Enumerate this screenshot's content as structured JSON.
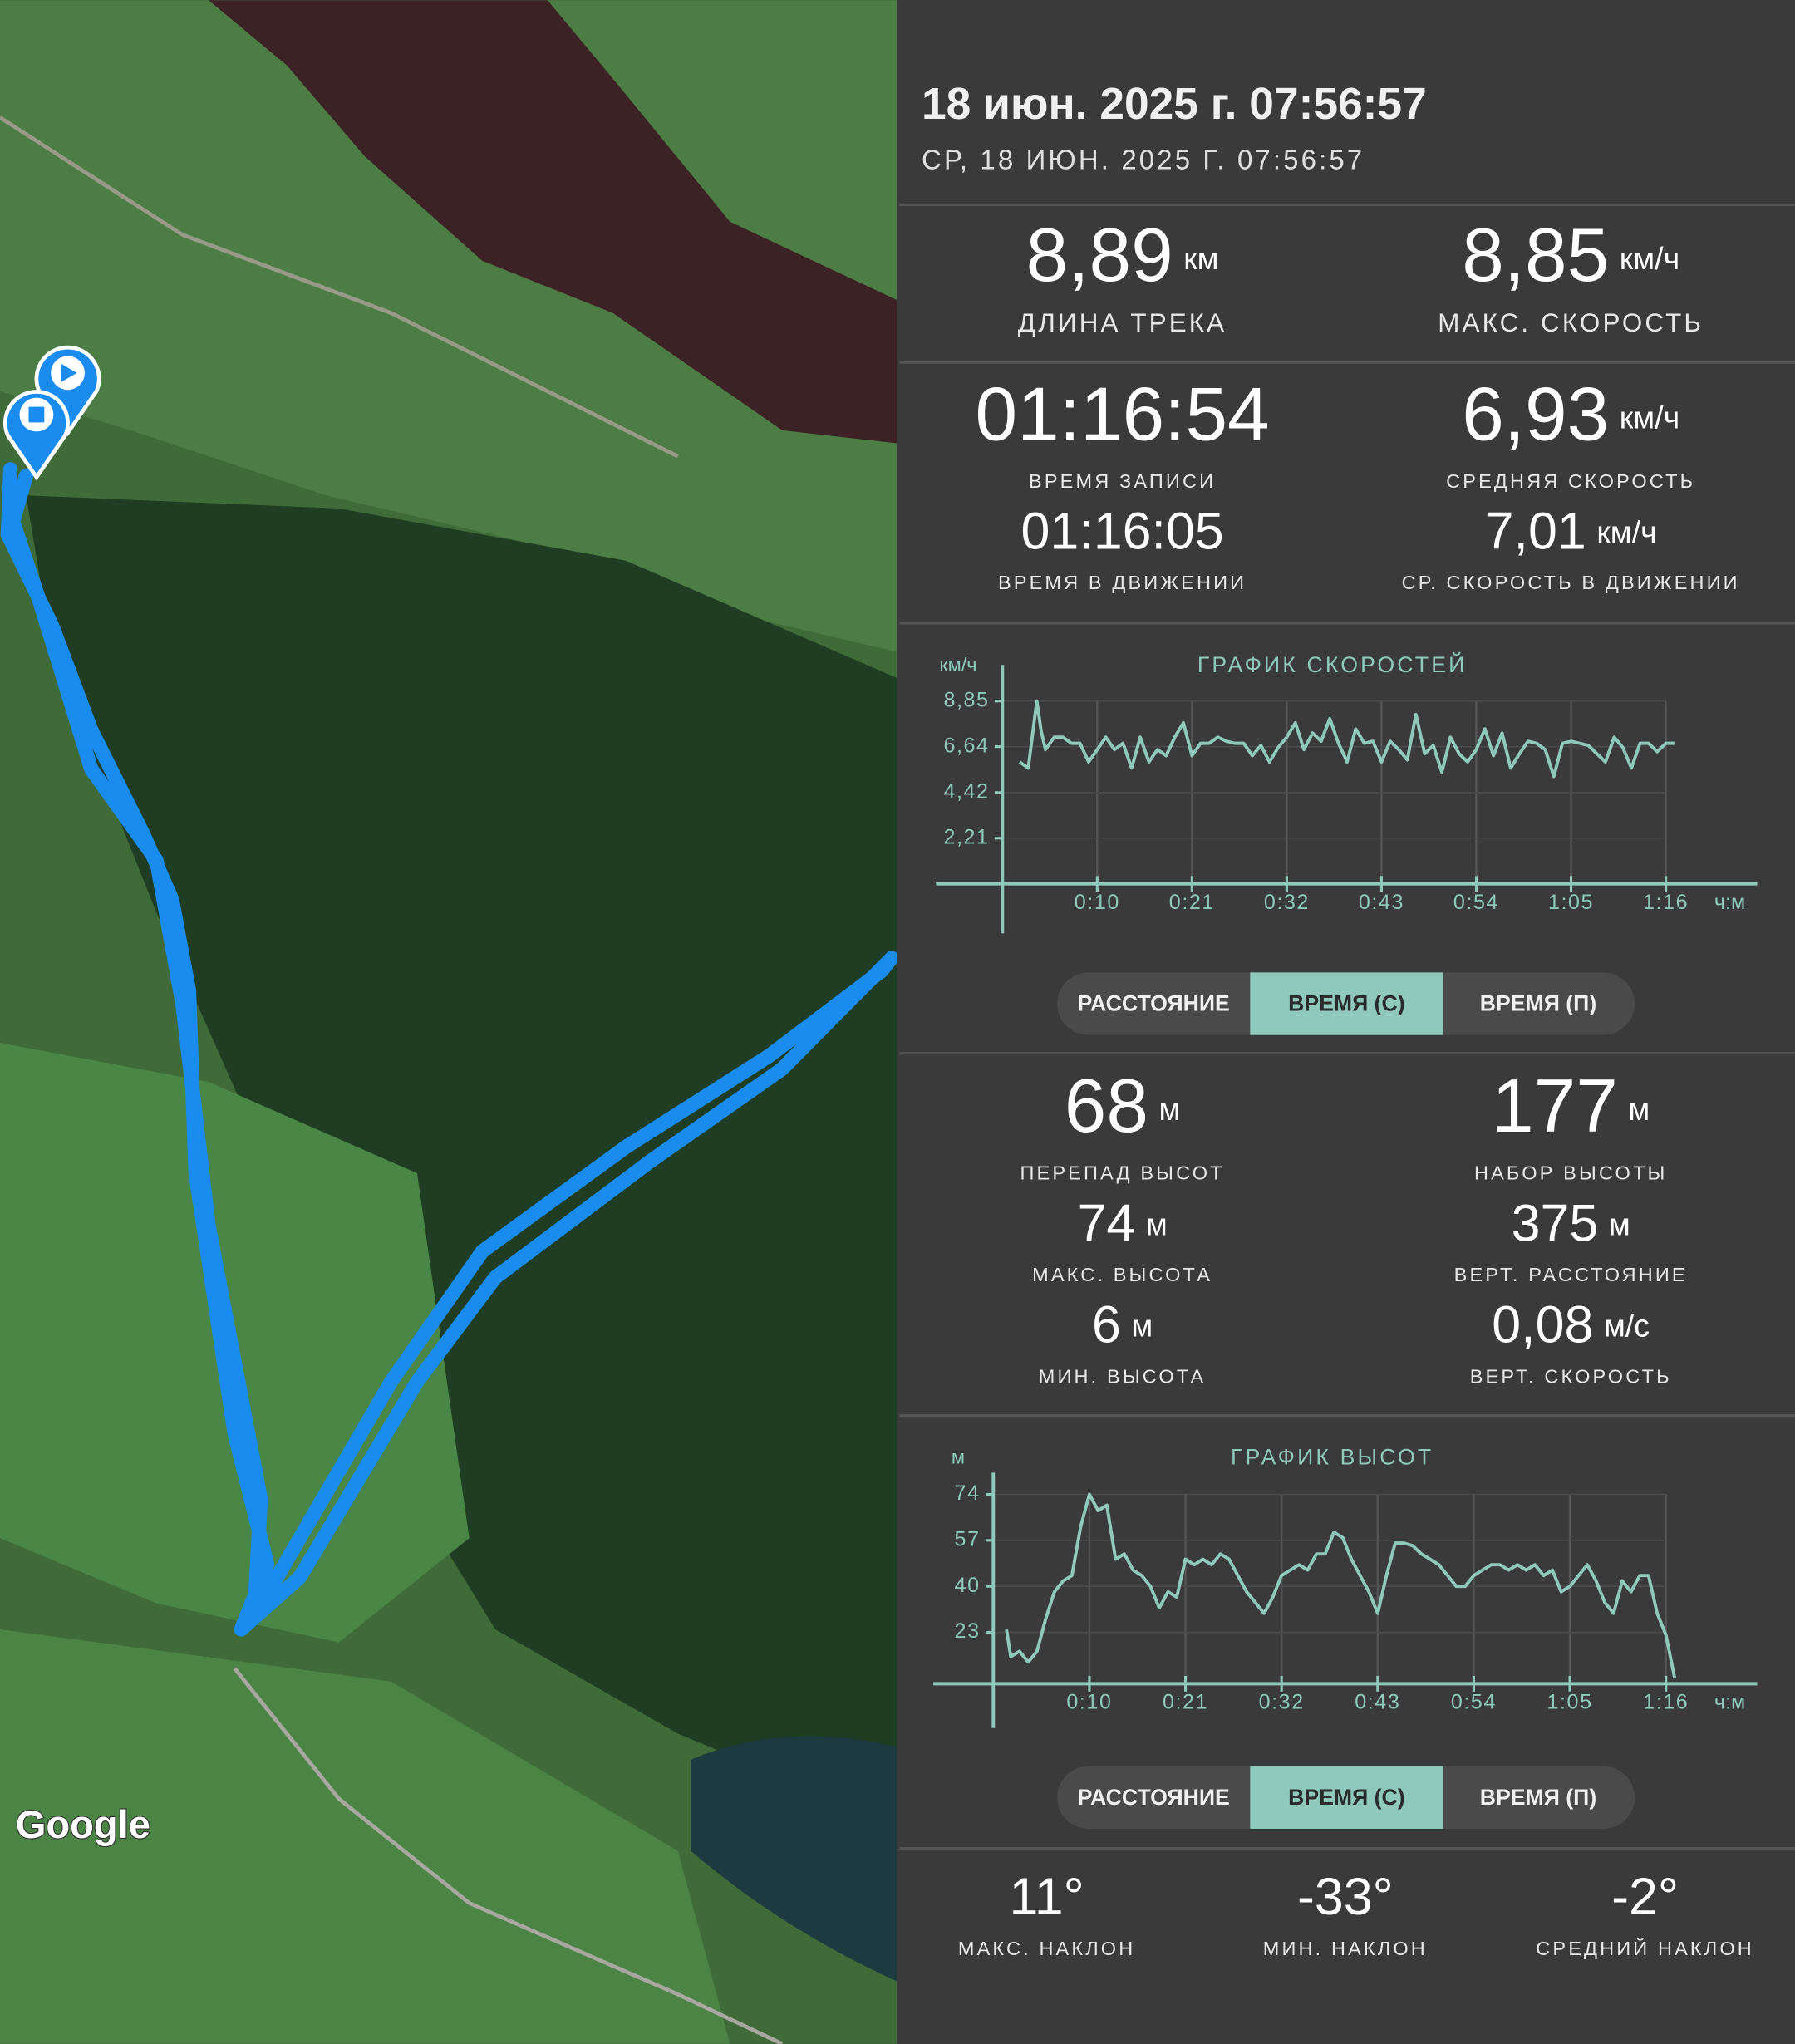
{
  "header": {
    "title": "18 июн. 2025 г. 07:56:57",
    "subtitle": "СР, 18 ИЮН. 2025 Г. 07:56:57"
  },
  "map": {
    "attribution": "Google"
  },
  "summary": [
    {
      "value": "8,89",
      "unit": "км",
      "label": "ДЛИНА ТРЕКА"
    },
    {
      "value": "8,85",
      "unit": "км/ч",
      "label": "МАКС. СКОРОСТЬ"
    },
    {
      "value": "01:16:54",
      "label": "ВРЕМЯ ЗАПИСИ"
    },
    {
      "value": "6,93",
      "unit": "км/ч",
      "label": "СРЕДНЯЯ СКОРОСТЬ"
    },
    {
      "value": "01:16:05",
      "label": "ВРЕМЯ В ДВИЖЕНИИ"
    },
    {
      "value": "7,01",
      "unit": "км/ч",
      "label": "СР. СКОРОСТЬ В ДВИЖЕНИИ"
    }
  ],
  "speed_modes": [
    "РАССТОЯНИЕ",
    "ВРЕМЯ (С)",
    "ВРЕМЯ (П)"
  ],
  "altitude": [
    {
      "value": "68",
      "unit": "м",
      "label": "ПЕРЕПАД ВЫСОТ"
    },
    {
      "value": "177",
      "unit": "м",
      "label": "НАБОР ВЫСОТЫ"
    },
    {
      "value": "74",
      "unit": "м",
      "label": "МАКС. ВЫСОТА"
    },
    {
      "value": "375",
      "unit": "м",
      "label": "ВЕРТ. РАССТОЯНИЕ"
    },
    {
      "value": "6",
      "unit": "м",
      "label": "МИН. ВЫСОТА"
    },
    {
      "value": "0,08",
      "unit": "м/с",
      "label": "ВЕРТ. СКОРОСТЬ"
    }
  ],
  "altitude_modes": [
    "РАССТОЯНИЕ",
    "ВРЕМЯ (С)",
    "ВРЕМЯ (П)"
  ],
  "slope": [
    {
      "value": "11°",
      "label": "МАКС. НАКЛОН"
    },
    {
      "value": "-33°",
      "label": "МИН. НАКЛОН"
    },
    {
      "value": "-2°",
      "label": "СРЕДНИЙ НАКЛОН"
    }
  ],
  "chart_data": [
    {
      "type": "line",
      "title": "ГРАФИК СКОРОСТЕЙ",
      "y_label": "км/ч",
      "x_label": "ч:м",
      "color": "#8ec9bb",
      "grid": true,
      "x": [
        1,
        2,
        3,
        3.5,
        4,
        5,
        6,
        7,
        8,
        9,
        10,
        11,
        12,
        13,
        14,
        15,
        16,
        17,
        18,
        19,
        20,
        21,
        22,
        23,
        24,
        25,
        26,
        27,
        28,
        29,
        30,
        31,
        32,
        33,
        34,
        35,
        36,
        37,
        38,
        39,
        40,
        41,
        42,
        43,
        44,
        45,
        46,
        47,
        48,
        49,
        50,
        51,
        52,
        53,
        54,
        55,
        56,
        57,
        58,
        59,
        60,
        61,
        62,
        63,
        64,
        65,
        66,
        67,
        68,
        69,
        70,
        71,
        72,
        73,
        74,
        75,
        76,
        77
      ],
      "values": [
        5.9,
        5.6,
        8.85,
        7.4,
        6.5,
        7.1,
        7.1,
        6.8,
        6.8,
        5.9,
        6.5,
        7.1,
        6.5,
        6.8,
        5.6,
        7.1,
        5.9,
        6.5,
        6.2,
        7.1,
        7.8,
        6.2,
        6.8,
        6.8,
        7.1,
        6.9,
        6.8,
        6.8,
        6.2,
        6.7,
        5.9,
        6.6,
        7.1,
        7.8,
        6.5,
        7.3,
        6.9,
        8.0,
        6.8,
        5.9,
        7.5,
        6.8,
        6.9,
        5.9,
        6.9,
        6.5,
        6.0,
        8.2,
        6.3,
        6.7,
        5.4,
        7.1,
        6.3,
        5.9,
        6.5,
        7.5,
        6.2,
        7.3,
        5.6,
        6.3,
        6.9,
        6.8,
        6.5,
        5.2,
        6.8,
        6.9,
        6.8,
        6.7,
        6.3,
        5.9,
        7.1,
        6.6,
        5.6,
        6.8,
        6.8,
        6.4,
        6.8,
        6.8
      ],
      "xlim": [
        -1,
        86
      ],
      "ylim": [
        0,
        10.6
      ],
      "xticks": [
        {
          "value": 10,
          "label": "0:10"
        },
        {
          "value": 21,
          "label": "0:21"
        },
        {
          "value": 32,
          "label": "0:32"
        },
        {
          "value": 43,
          "label": "0:43"
        },
        {
          "value": 54,
          "label": "0:54"
        },
        {
          "value": 65,
          "label": "1:05"
        },
        {
          "value": 76,
          "label": "1:16"
        }
      ],
      "yticks": [
        {
          "value": 2.21,
          "label": "2,21"
        },
        {
          "value": 4.42,
          "label": "4,42"
        },
        {
          "value": 6.64,
          "label": "6,64"
        },
        {
          "value": 8.85,
          "label": "8,85"
        }
      ]
    },
    {
      "type": "line",
      "title": "ГРАФИК ВЫСОТ",
      "y_label": "м",
      "x_label": "ч:м",
      "color": "#8ec9bb",
      "grid": true,
      "x": [
        0.5,
        1,
        2,
        3,
        4,
        5,
        6,
        7,
        8,
        9,
        10,
        11,
        12,
        13,
        14,
        15,
        16,
        17,
        18,
        19,
        20,
        21,
        22,
        23,
        24,
        25,
        26,
        27,
        28,
        29,
        30,
        31,
        32,
        33,
        34,
        35,
        36,
        37,
        38,
        39,
        40,
        41,
        42,
        43,
        44,
        45,
        46,
        47,
        48,
        49,
        50,
        51,
        52,
        53,
        54,
        55,
        56,
        57,
        58,
        59,
        60,
        61,
        62,
        63,
        64,
        65,
        66,
        67,
        68,
        69,
        70,
        71,
        72,
        73,
        74,
        75,
        76,
        77
      ],
      "values": [
        24,
        14,
        16,
        12,
        16,
        28,
        38,
        42,
        44,
        62,
        74,
        68,
        70,
        50,
        52,
        46,
        44,
        40,
        32,
        38,
        36,
        50,
        48,
        50,
        48,
        52,
        50,
        44,
        38,
        34,
        30,
        36,
        44,
        46,
        48,
        46,
        52,
        52,
        60,
        58,
        50,
        44,
        38,
        30,
        44,
        56,
        56,
        55,
        52,
        50,
        48,
        44,
        40,
        40,
        44,
        46,
        48,
        48,
        46,
        48,
        46,
        48,
        44,
        46,
        38,
        40,
        44,
        48,
        42,
        34,
        30,
        42,
        38,
        44,
        44,
        30,
        22,
        6
      ],
      "xlim": [
        -1,
        86
      ],
      "ylim": [
        4,
        82
      ],
      "xticks": [
        {
          "value": 10,
          "label": "0:10"
        },
        {
          "value": 21,
          "label": "0:21"
        },
        {
          "value": 32,
          "label": "0:32"
        },
        {
          "value": 43,
          "label": "0:43"
        },
        {
          "value": 54,
          "label": "0:54"
        },
        {
          "value": 65,
          "label": "1:05"
        },
        {
          "value": 76,
          "label": "1:16"
        }
      ],
      "yticks": [
        23,
        40,
        57,
        74
      ]
    }
  ]
}
